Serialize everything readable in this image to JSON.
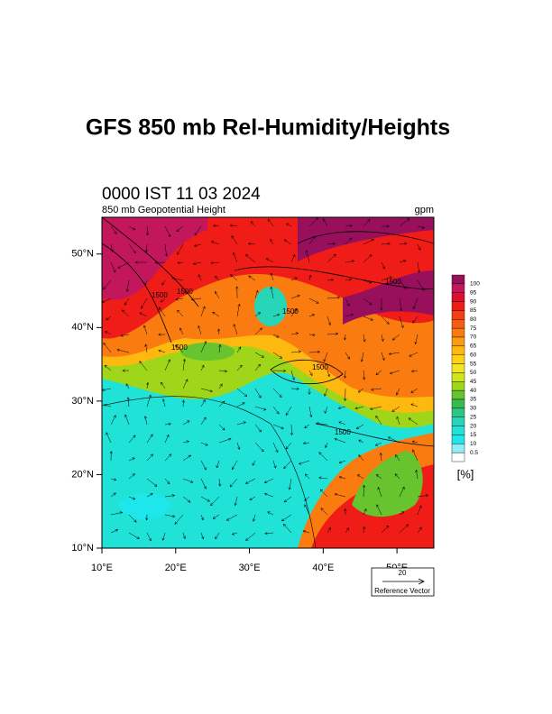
{
  "title": "GFS 850 mb Rel-Humidity/Heights",
  "map": {
    "time_label": "0000 IST 11 03 2024",
    "left_label": "850 mb Geopotential Height",
    "right_label": "gpm",
    "lon_range": [
      10,
      55
    ],
    "lat_range": [
      10,
      55
    ],
    "lat_ticks": [
      {
        "value": 10,
        "label": "10°N"
      },
      {
        "value": 20,
        "label": "20°N"
      },
      {
        "value": 30,
        "label": "30°N"
      },
      {
        "value": 40,
        "label": "40°N"
      },
      {
        "value": 50,
        "label": "50°N"
      }
    ],
    "lon_ticks": [
      {
        "value": 10,
        "label": "10°E"
      },
      {
        "value": 20,
        "label": "20°E"
      },
      {
        "value": 30,
        "label": "30°E"
      },
      {
        "value": 40,
        "label": "40°E"
      },
      {
        "value": 50,
        "label": "50°E"
      }
    ],
    "contour_labels": [
      "1500",
      "1500",
      "1500",
      "1500",
      "1500",
      "1500",
      "1500"
    ]
  },
  "colorbar": {
    "levels": [
      100,
      95,
      90,
      85,
      80,
      75,
      70,
      65,
      60,
      55,
      50,
      45,
      40,
      35,
      30,
      25,
      20,
      15,
      10,
      0.5
    ],
    "colors": [
      "#98105c",
      "#c2185b",
      "#dc1030",
      "#f01c18",
      "#f53e14",
      "#f85c12",
      "#fa7c10",
      "#fc9c10",
      "#fdb90f",
      "#fdd40f",
      "#f2e620",
      "#cfe419",
      "#9fd61a",
      "#67c42e",
      "#38ba4e",
      "#2bc688",
      "#27d6b6",
      "#20e2d6",
      "#1ee6ea",
      "#8ef0f6",
      "#ffffff"
    ],
    "unit_label": "[%]"
  },
  "reference_vector": {
    "magnitude": "20",
    "label": "Reference Vector"
  }
}
